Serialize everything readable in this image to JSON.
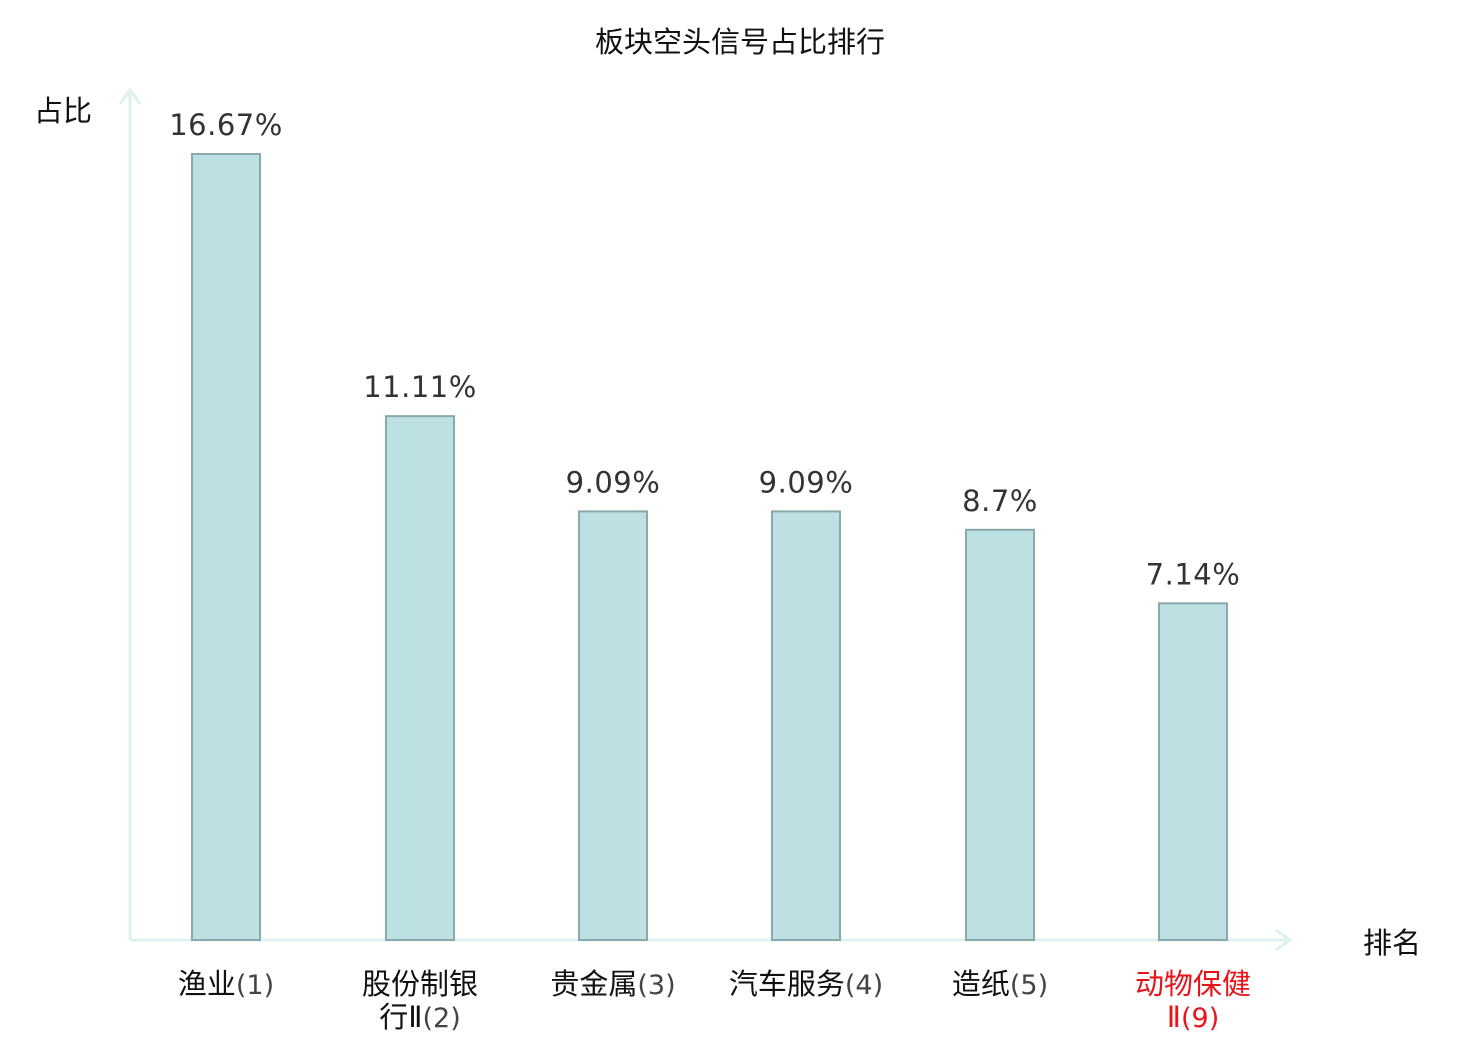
{
  "chart_data": {
    "type": "bar",
    "title": "板块空头信号占比排行",
    "ylabel": "占比",
    "xlabel": "排名",
    "ylim": [
      0,
      20
    ],
    "grid": false,
    "legend": "none",
    "categories": [
      {
        "name": [
          "渔业"
        ],
        "rank": "(1)",
        "highlight": false
      },
      {
        "name": [
          "股份制银",
          "行Ⅱ"
        ],
        "rank": "(2)",
        "highlight": false
      },
      {
        "name": [
          "贵金属"
        ],
        "rank": "(3)",
        "highlight": false
      },
      {
        "name": [
          "汽车服务"
        ],
        "rank": "(4)",
        "highlight": false
      },
      {
        "name": [
          "造纸"
        ],
        "rank": "(5)",
        "highlight": false
      },
      {
        "name": [
          "动物保健",
          "Ⅱ"
        ],
        "rank": "(9)",
        "highlight": true
      }
    ],
    "values": [
      16.67,
      11.11,
      9.09,
      9.09,
      8.7,
      7.14
    ],
    "value_labels": [
      "16.67%",
      "11.11%",
      "9.09%",
      "9.09%",
      "8.7%",
      "7.14%"
    ]
  },
  "colors": {
    "bar_fill": "#bde0e3",
    "bar_stroke": "#8aa9ab",
    "axis": "#dff1ef",
    "text": "#333333",
    "label": "#111111",
    "highlight": "#e8141a"
  }
}
